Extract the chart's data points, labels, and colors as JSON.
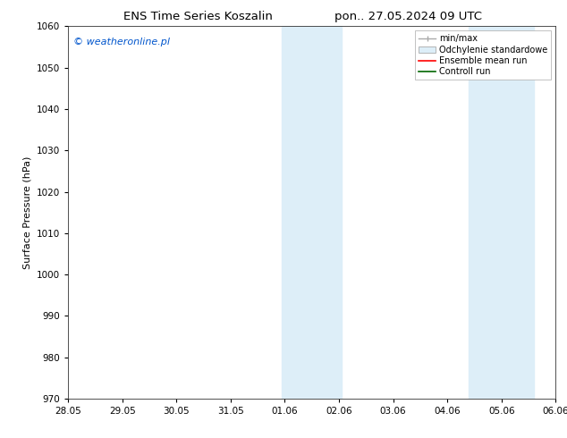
{
  "title_left": "ENS Time Series Koszalin",
  "title_right": "pon.. 27.05.2024 09 UTC",
  "ylabel": "Surface Pressure (hPa)",
  "ylim": [
    970,
    1060
  ],
  "yticks": [
    970,
    980,
    990,
    1000,
    1010,
    1020,
    1030,
    1040,
    1050,
    1060
  ],
  "xtick_labels": [
    "28.05",
    "29.05",
    "30.05",
    "31.05",
    "01.06",
    "02.06",
    "03.06",
    "04.06",
    "05.06",
    "06.06"
  ],
  "xtick_positions": [
    0,
    1,
    2,
    3,
    4,
    5,
    6,
    7,
    8,
    9
  ],
  "shaded_regions": [
    {
      "xmin": 3.95,
      "xmax": 4.5,
      "color": "#ddeef8"
    },
    {
      "xmin": 4.5,
      "xmax": 5.05,
      "color": "#ddeef8"
    },
    {
      "xmin": 7.4,
      "xmax": 7.9,
      "color": "#ddeef8"
    },
    {
      "xmin": 7.9,
      "xmax": 8.6,
      "color": "#ddeef8"
    }
  ],
  "background_color": "#ffffff",
  "watermark": "© weatheronline.pl",
  "watermark_color": "#0055cc",
  "legend_entries": [
    {
      "label": "min/max",
      "color": "#aaaaaa",
      "style": "line_with_caps"
    },
    {
      "label": "Odchylenie standardowe",
      "color": "#ddeef8",
      "style": "filled"
    },
    {
      "label": "Ensemble mean run",
      "color": "#ff0000",
      "style": "line"
    },
    {
      "label": "Controll run",
      "color": "#006600",
      "style": "line"
    }
  ],
  "title_fontsize": 9.5,
  "tick_fontsize": 7.5,
  "ylabel_fontsize": 8,
  "watermark_fontsize": 8,
  "legend_fontsize": 7
}
